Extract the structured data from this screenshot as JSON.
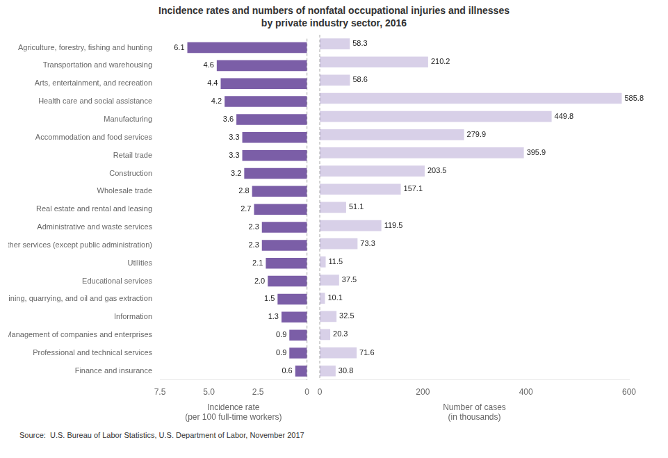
{
  "chart_data": [
    {
      "type": "bar",
      "orientation": "horizontal",
      "title": "Incidence rates and numbers of nonfatal occupational injuries and illnesses\nby private industry sector, 2016",
      "annotation": "Source:  U.S. Bureau of Labor Statistics, U.S. Department of Labor, November 2017",
      "categories": [
        "Agriculture, forestry, fishing and hunting",
        "Transportation and warehousing",
        "Arts, entertainment, and recreation",
        "Health care and social assistance",
        "Manufacturing",
        "Accommodation and food services",
        "Retail trade",
        "Construction",
        "Wholesale trade",
        "Real estate and rental and leasing",
        "Administrative and waste services",
        "Other services (except public administration)",
        "Utilities",
        "Educational services",
        "Mining, quarrying, and oil and gas extraction",
        "Information",
        "Management of companies and enterprises",
        "Professional and technical services",
        "Finance and insurance"
      ],
      "values": [
        6.1,
        4.6,
        4.4,
        4.2,
        3.6,
        3.3,
        3.3,
        3.2,
        2.8,
        2.7,
        2.3,
        2.3,
        2.1,
        2.0,
        1.5,
        1.3,
        0.9,
        0.9,
        0.6
      ],
      "value_labels": [
        "6.1",
        "4.6",
        "4.4",
        "4.2",
        "3.6",
        "3.3",
        "3.3",
        "3.2",
        "2.8",
        "2.7",
        "2.3",
        "2.3",
        "2.1",
        "2.0",
        "1.5",
        "1.3",
        "0.9",
        "0.9",
        "0.6"
      ],
      "color": "#7B5EA7",
      "xlim": [
        7.5,
        0
      ],
      "xticks": [
        7.5,
        {
          "value": 5,
          "label": "5.0"
        },
        2.5,
        0
      ],
      "xlabel": "Incidence rate\n(per 100 full-time workers)",
      "grid": false,
      "data_labels": true
    },
    {
      "type": "bar",
      "orientation": "horizontal",
      "categories": [
        "Agriculture, forestry, fishing and hunting",
        "Transportation and warehousing",
        "Arts, entertainment, and recreation",
        "Health care and social assistance",
        "Manufacturing",
        "Accommodation and food services",
        "Retail trade",
        "Construction",
        "Wholesale trade",
        "Real estate and rental and leasing",
        "Administrative and waste services",
        "Other services (except public administration)",
        "Utilities",
        "Educational services",
        "Mining, quarrying, and oil and gas extraction",
        "Information",
        "Management of companies and enterprises",
        "Professional and technical services",
        "Finance and insurance"
      ],
      "values": [
        58.3,
        210.2,
        58.6,
        585.8,
        449.8,
        279.9,
        395.9,
        203.5,
        157.1,
        51.1,
        119.5,
        73.3,
        11.5,
        37.5,
        10.1,
        32.5,
        20.3,
        71.6,
        30.8
      ],
      "color": "#D8D0E8",
      "xlim": [
        0,
        600
      ],
      "xticks": [
        0,
        200,
        400,
        600
      ],
      "xlabel": "Number of cases\n(in thousands)",
      "grid": false,
      "data_labels": true,
      "tick_labels": "x"
    }
  ]
}
